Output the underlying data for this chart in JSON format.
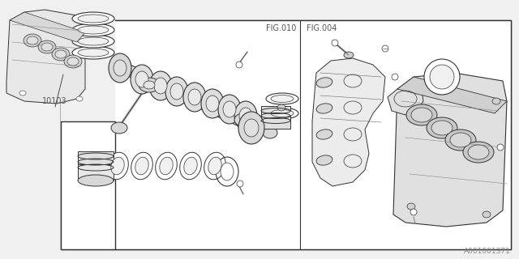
{
  "bg_color": "#f0f0f0",
  "box_bg": "#ffffff",
  "line_color": "#333333",
  "text_color": "#555555",
  "title_fig010": "FIG.010",
  "title_fig004": "FIG.004",
  "part_number": "10103",
  "doc_number": "A001001371",
  "font_size_fig": 7,
  "font_size_part": 7,
  "font_size_doc": 6.5
}
